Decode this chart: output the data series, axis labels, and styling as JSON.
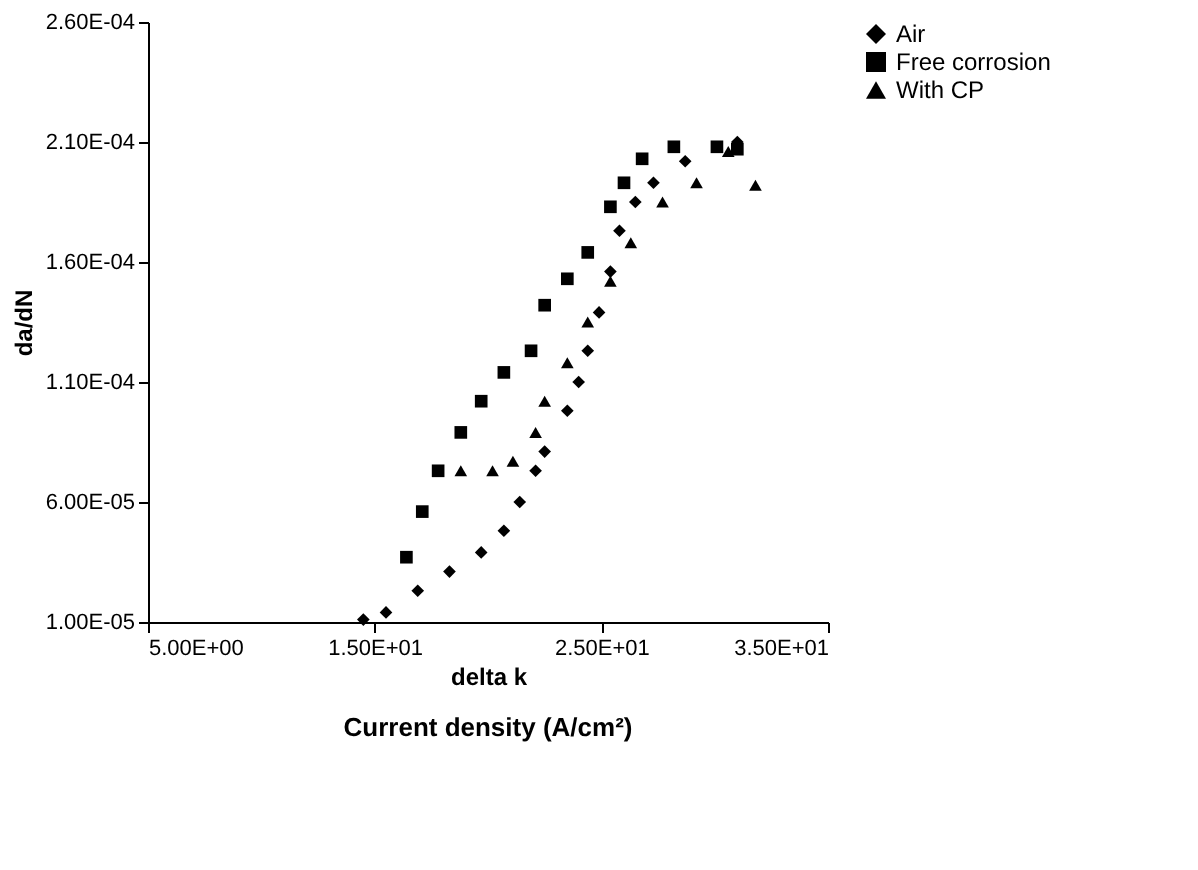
{
  "chart_data": {
    "type": "scatter",
    "xlabel": "delta k",
    "ylabel": "da/dN",
    "annotations": [
      "Current density (A/cm²)"
    ],
    "xlim": [
      5,
      35
    ],
    "xticks": [
      {
        "value": 5,
        "label": "5.00E+00"
      },
      {
        "value": 15,
        "label": "1.50E+01"
      },
      {
        "value": 25,
        "label": "2.50E+01"
      },
      {
        "value": 35,
        "label": "3.50E+01"
      }
    ],
    "ylim": [
      1e-05,
      0.00026
    ],
    "yticks": [
      {
        "value": 1e-05,
        "label": "1.00E-05"
      },
      {
        "value": 6e-05,
        "label": "6.00E-05"
      },
      {
        "value": 0.00011,
        "label": "1.10E-04"
      },
      {
        "value": 0.00016,
        "label": "1.60E-04"
      },
      {
        "value": 0.00021,
        "label": "2.10E-04"
      },
      {
        "value": 0.00026,
        "label": "2.60E-04"
      }
    ],
    "grid": false,
    "legend": "right",
    "series": [
      {
        "name": "Air",
        "color": "#000000",
        "marker": "diamond",
        "x": [
          14.5,
          15.5,
          16.9,
          18.3,
          19.7,
          20.7,
          21.4,
          22.1,
          22.5,
          23.5,
          24.0,
          24.4,
          24.9,
          25.4,
          25.8,
          26.5,
          27.3,
          28.7,
          31.0
        ],
        "values": [
          1.1e-05,
          1.4e-05,
          2.3e-05,
          3.1e-05,
          3.9e-05,
          4.8e-05,
          6e-05,
          7.3e-05,
          8.1e-05,
          9.8e-05,
          0.00011,
          0.000123,
          0.000139,
          0.000156,
          0.000173,
          0.000185,
          0.000193,
          0.000202,
          0.00021
        ]
      },
      {
        "name": "Free corrosion",
        "color": "#000000",
        "marker": "square",
        "x": [
          16.4,
          17.1,
          17.8,
          18.8,
          19.7,
          20.7,
          21.9,
          22.5,
          23.5,
          24.4,
          25.4,
          26.0,
          26.8,
          28.2,
          30.1,
          31.0
        ],
        "values": [
          3.7e-05,
          5.6e-05,
          7.3e-05,
          8.9e-05,
          0.000102,
          0.000114,
          0.000123,
          0.000142,
          0.000153,
          0.000164,
          0.000183,
          0.000193,
          0.000203,
          0.000208,
          0.000208,
          0.000207
        ]
      },
      {
        "name": "With CP",
        "color": "#000000",
        "marker": "triangle",
        "x": [
          18.8,
          20.2,
          21.1,
          22.1,
          22.5,
          23.5,
          24.4,
          25.4,
          26.3,
          27.7,
          29.2,
          30.6,
          31.8
        ],
        "values": [
          7.3e-05,
          7.3e-05,
          7.7e-05,
          8.9e-05,
          0.000102,
          0.000118,
          0.000135,
          0.000152,
          0.000168,
          0.000185,
          0.000193,
          0.000206,
          0.000192
        ]
      }
    ]
  }
}
